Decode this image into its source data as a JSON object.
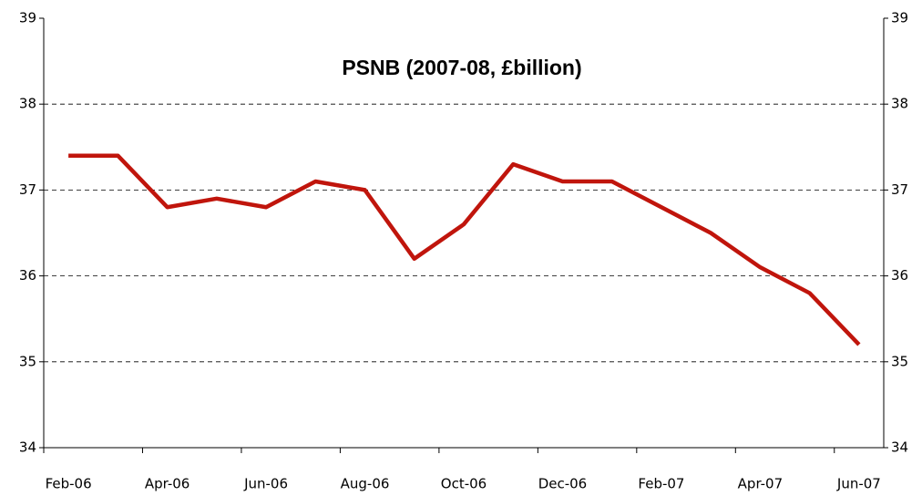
{
  "chart_data": {
    "type": "line",
    "title": "PSNB (2007-08, £billion)",
    "categories": [
      "Feb-06",
      null,
      "Apr-06",
      null,
      "Jun-06",
      null,
      "Aug-06",
      null,
      "Oct-06",
      null,
      "Dec-06",
      null,
      "Feb-07",
      null,
      "Apr-07",
      null,
      "Jun-07"
    ],
    "series": [
      {
        "name": "PSNB",
        "color": "#c0150c",
        "values": [
          37.4,
          37.4,
          36.8,
          36.9,
          36.8,
          37.1,
          37.0,
          36.2,
          36.6,
          37.3,
          37.1,
          37.1,
          36.8,
          36.5,
          36.1,
          35.8,
          35.2
        ]
      }
    ],
    "ylim": [
      34,
      39
    ],
    "yticks": [
      34,
      35,
      36,
      37,
      38,
      39
    ],
    "y2lim": [
      34,
      39
    ],
    "y2ticks": [
      34,
      35,
      36,
      37,
      38,
      39
    ],
    "grid": true
  }
}
